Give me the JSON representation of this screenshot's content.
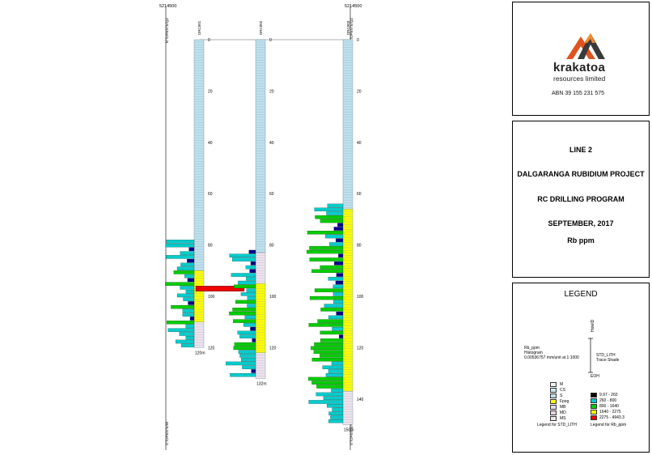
{
  "section": {
    "top_labels": [
      "5214500",
      "5214500"
    ],
    "axis_left_top": "N°/OPEN°E/QZ",
    "axis_left_bottom": "S°/OPEN°E/W",
    "axis_right_top": "N°/OPEN°E/QZ",
    "axis_right_bottom": "S°/OPEN°E/W"
  },
  "holes": [
    {
      "id": "DRC001",
      "eoh_label": "120m",
      "depth": 120,
      "lith": [
        [
          "S",
          0,
          90
        ],
        [
          "Fpeg",
          90,
          110
        ],
        [
          "MS",
          110,
          120
        ]
      ],
      "rb": [
        [
          "1640-2275",
          96,
          98
        ]
      ]
    },
    {
      "id": "DRC002",
      "eoh_label": "132m",
      "depth": 132,
      "lith": [
        [
          "S",
          0,
          83
        ],
        [
          "MS",
          83,
          95
        ],
        [
          "Fpeg",
          95,
          122
        ],
        [
          "MS",
          122,
          132
        ]
      ],
      "rb": []
    },
    {
      "id": "DRC003",
      "eoh_label": "150m",
      "depth": 150,
      "lith": [
        [
          "S",
          0,
          66
        ],
        [
          "Fpeg",
          66,
          137
        ],
        [
          "MS",
          137,
          150
        ]
      ],
      "rb": []
    }
  ],
  "depth_labels": [
    "0",
    "20",
    "40",
    "60",
    "80",
    "100",
    "120",
    "140"
  ],
  "logo": {
    "name": "krakatoa",
    "sub": "resources limited",
    "abn": "ABN 39 155 231 575"
  },
  "title": {
    "line1": "LINE 2",
    "line2": "DALGARANGA RUBIDIUM PROJECT",
    "line3": "RC DRILLING PROGRAM",
    "line4": "SEPTEMBER, 2017",
    "line5": "Rb ppm"
  },
  "legend": {
    "heading": "LEGEND",
    "rb_title": "Rb_ppm",
    "rb_sub1": "Histogram",
    "rb_sub2": "0.00536757 mm/unit at 1:1000",
    "trace_top": "HoleID",
    "trace_label1": "STD_LITH",
    "trace_label2": "Trace Shade",
    "trace_bottom": "EOH",
    "lith_items": [
      {
        "code": "M",
        "color": "#f4f4f4"
      },
      {
        "code": "CS",
        "color": "#cde6f2"
      },
      {
        "code": "S",
        "color": "#bfe1ee"
      },
      {
        "code": "Fpeg",
        "color": "#ffff00"
      },
      {
        "code": "MB",
        "color": "#e8d9ea"
      },
      {
        "code": "MD",
        "color": "#ead3e6"
      },
      {
        "code": "MS",
        "color": "#f0e3ee"
      }
    ],
    "lith_caption": "Legend for STD_LITH",
    "rb_items": [
      {
        "range": "9.97 - 260",
        "color": "#000000"
      },
      {
        "range": "260 - 800",
        "color": "#00cccc"
      },
      {
        "range": "800 - 1640",
        "color": "#00cc00"
      },
      {
        "range": "1640 - 2275",
        "color": "#ffff00"
      },
      {
        "range": "2275 - 4943.3",
        "color": "#ee0000"
      }
    ],
    "rb_caption": "Legend for Rb_ppm"
  }
}
